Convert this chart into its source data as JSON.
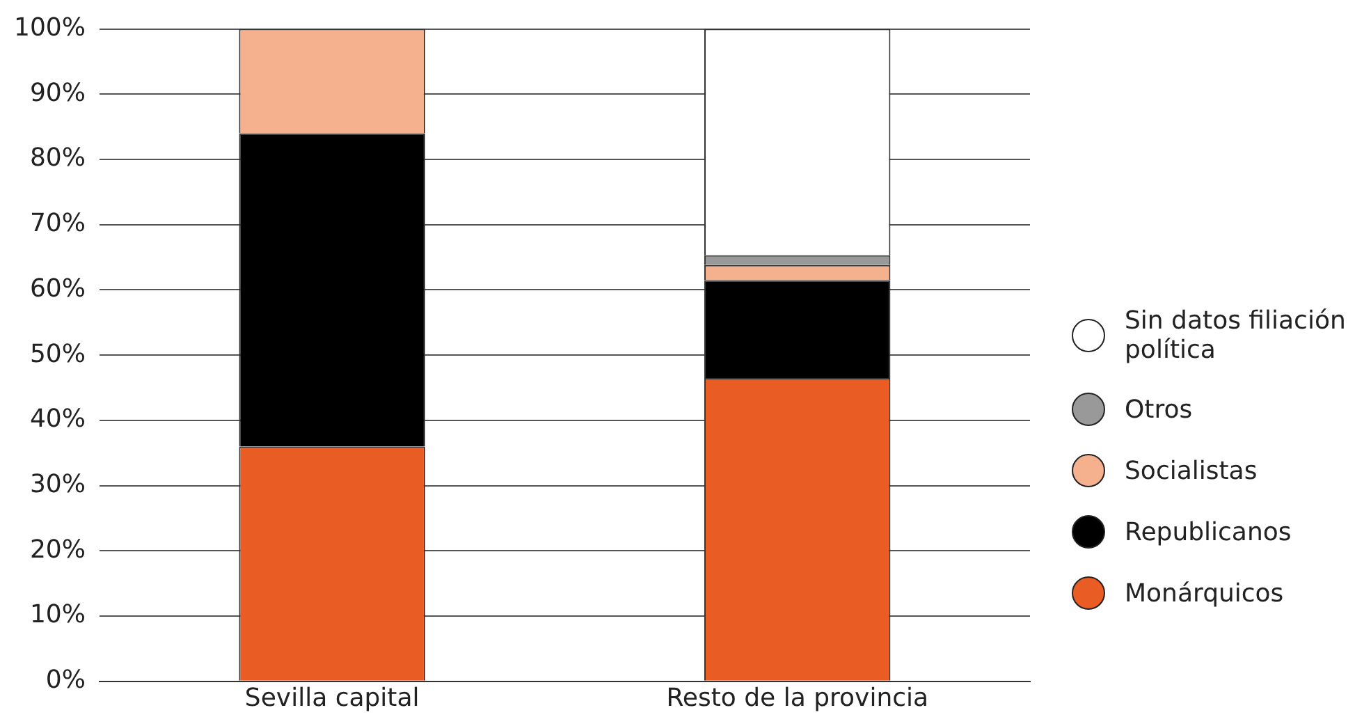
{
  "chart_data": {
    "type": "bar",
    "stacked": true,
    "categories": [
      "Sevilla capital",
      "Resto de la provincia"
    ],
    "series": [
      {
        "name": "Monárquicos",
        "color": "#e95d25",
        "values": [
          36,
          46.5
        ]
      },
      {
        "name": "Republicanos",
        "color": "#000000",
        "values": [
          48,
          15.0
        ]
      },
      {
        "name": "Socialistas",
        "color": "#f5b18e",
        "values": [
          16,
          2.3
        ]
      },
      {
        "name": "Otros",
        "color": "#999999",
        "values": [
          0,
          1.5
        ]
      },
      {
        "name": "Sin datos filiación política",
        "color": "#ffffff",
        "values": [
          0,
          34.7
        ]
      }
    ],
    "ylim": [
      0,
      100
    ],
    "yticks": [
      {
        "value": 0,
        "label": "0%"
      },
      {
        "value": 10,
        "label": "10%"
      },
      {
        "value": 20,
        "label": "20%"
      },
      {
        "value": 30,
        "label": "30%"
      },
      {
        "value": 40,
        "label": "40%"
      },
      {
        "value": 50,
        "label": "50%"
      },
      {
        "value": 60,
        "label": "60%"
      },
      {
        "value": 70,
        "label": "70%"
      },
      {
        "value": 80,
        "label": "80%"
      },
      {
        "value": 90,
        "label": "90%"
      },
      {
        "value": 100,
        "label": "100%"
      }
    ],
    "grid": "y",
    "legend": "right"
  }
}
